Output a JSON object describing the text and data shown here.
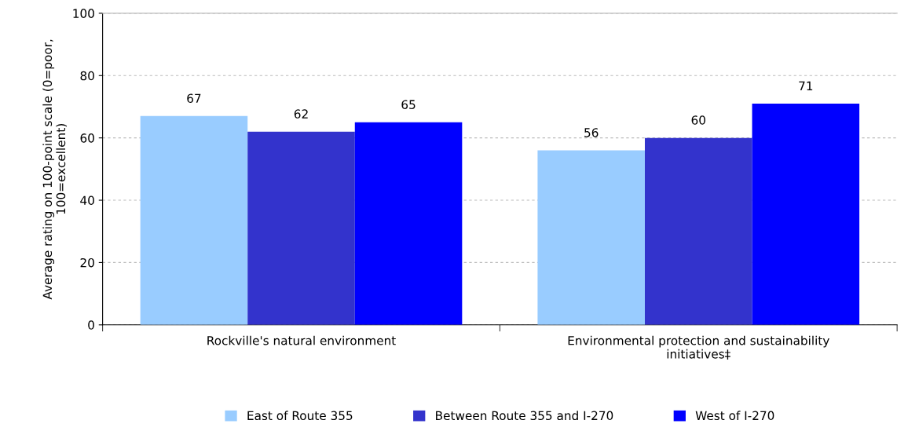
{
  "chart_data": {
    "type": "bar",
    "ylabel": "Average rating on 100-point scale (0=poor, 100=excellent)",
    "categories": [
      "Rockville's natural environment",
      "Environmental protection and sustainability initiatives‡"
    ],
    "series": [
      {
        "name": "East of Route 355",
        "color": "#99ccff",
        "values": [
          67,
          56
        ]
      },
      {
        "name": "Between Route 355 and I-270",
        "color": "#3333cc",
        "values": [
          62,
          60
        ]
      },
      {
        "name": "West of I-270",
        "color": "#0000ff",
        "values": [
          65,
          71
        ]
      }
    ],
    "ylim": [
      0,
      100
    ],
    "yticks": [
      0,
      20,
      40,
      60,
      80,
      100
    ],
    "grid": "y",
    "legend": "bottom",
    "data_labels": true
  }
}
